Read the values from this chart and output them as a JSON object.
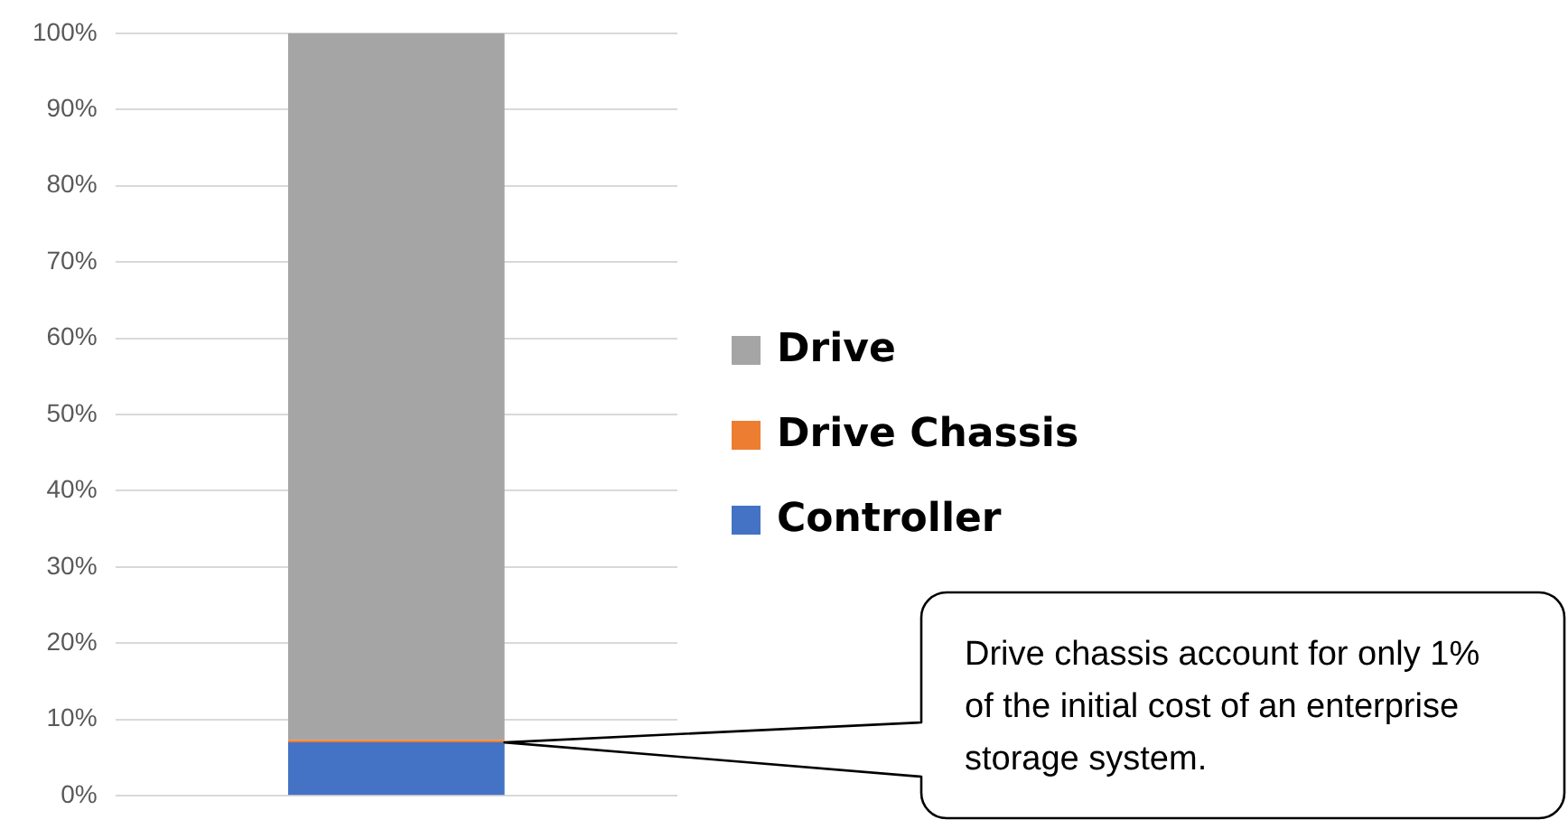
{
  "chart_data": {
    "type": "bar",
    "stacked": true,
    "categories": [
      null
    ],
    "series": [
      {
        "name": "Controller",
        "color": "#4472c4",
        "values": [
          7
        ]
      },
      {
        "name": "Drive Chassis",
        "color": "#ed7d31",
        "values": [
          0.3
        ]
      },
      {
        "name": "Drive",
        "color": "#a5a5a5",
        "values": [
          92.7
        ]
      }
    ],
    "ylim": [
      0,
      100
    ],
    "yticks": [
      {
        "value": 0,
        "label": "0%"
      },
      {
        "value": 10,
        "label": "10%"
      },
      {
        "value": 20,
        "label": "20%"
      },
      {
        "value": 30,
        "label": "30%"
      },
      {
        "value": 40,
        "label": "40%"
      },
      {
        "value": 50,
        "label": "50%"
      },
      {
        "value": 60,
        "label": "60%"
      },
      {
        "value": 70,
        "label": "70%"
      },
      {
        "value": 80,
        "label": "80%"
      },
      {
        "value": 90,
        "label": "90%"
      },
      {
        "value": 100,
        "label": "100%"
      }
    ],
    "grid": "y",
    "legend": "right",
    "annotations": [
      "Drive chassis account for only 1% of the initial cost of an enterprise storage system."
    ]
  }
}
